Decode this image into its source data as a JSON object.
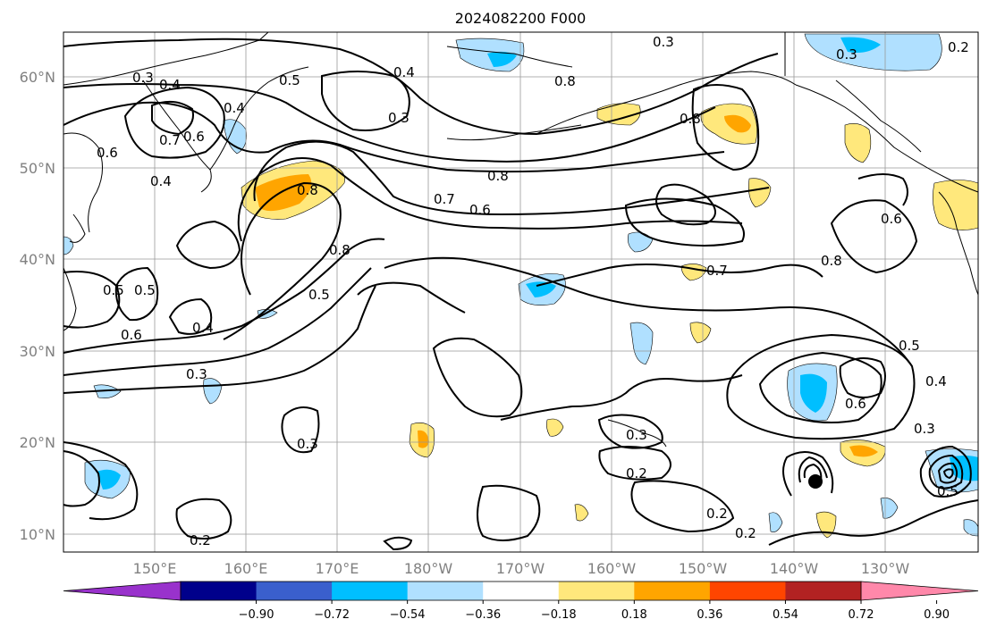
{
  "figure": {
    "title": "2024082200 F000"
  },
  "map": {
    "lat_labels": [
      "60°N",
      "50°N",
      "40°N",
      "30°N",
      "20°N",
      "10°N"
    ],
    "lon_labels": [
      "150°E",
      "160°E",
      "170°E",
      "180°W",
      "170°W",
      "160°W",
      "150°W",
      "140°W",
      "130°W"
    ],
    "contour_labels": [
      "0.3",
      "0.4",
      "0.5",
      "0.6",
      "0.7",
      "0.8",
      "0.2"
    ],
    "colors": {
      "land_outline": "#000000",
      "gridline": "#999999",
      "contour": "#000000"
    }
  },
  "colorbar": {
    "tick_labels": [
      "−0.90",
      "−0.72",
      "−0.54",
      "−0.36",
      "−0.18",
      "0.18",
      "0.36",
      "0.54",
      "0.72",
      "0.90"
    ],
    "colors": [
      "#9932cc",
      "#00008b",
      "#3a5fcd",
      "#00bfff",
      "#b0e0ff",
      "#ffffff",
      "#ffe87c",
      "#ffa500",
      "#ff4500",
      "#b22222",
      "#ff88aa"
    ]
  }
}
